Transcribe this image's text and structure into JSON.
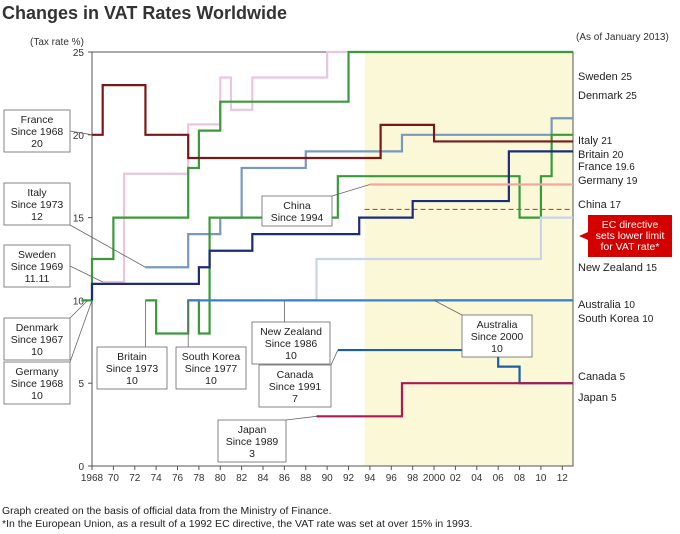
{
  "title": "Changes in VAT Rates Worldwide",
  "as_of": "(As of January 2013)",
  "y_axis_label": "(Tax rate %)",
  "footnotes": [
    "Graph created on the basis of official data from the Ministry of Finance.",
    "*In the European Union, as a result of a 1992 EC directive, the VAT rate was set at over 15% in 1993."
  ],
  "callout": "EC directive sets lower limit for VAT rate*",
  "chart_data": {
    "type": "line",
    "title": "Changes in VAT Rates Worldwide",
    "xlabel": "",
    "ylabel": "(Tax rate %)",
    "xlim": [
      1968,
      2013
    ],
    "ylim": [
      0,
      25
    ],
    "x_ticks": [
      {
        "v": 1968,
        "label": "1968"
      },
      {
        "v": 1970,
        "label": "70"
      },
      {
        "v": 1972,
        "label": "72"
      },
      {
        "v": 1974,
        "label": "74"
      },
      {
        "v": 1976,
        "label": "76"
      },
      {
        "v": 1978,
        "label": "78"
      },
      {
        "v": 1980,
        "label": "80"
      },
      {
        "v": 1982,
        "label": "82"
      },
      {
        "v": 1984,
        "label": "84"
      },
      {
        "v": 1986,
        "label": "86"
      },
      {
        "v": 1988,
        "label": "88"
      },
      {
        "v": 1990,
        "label": "90"
      },
      {
        "v": 1992,
        "label": "92"
      },
      {
        "v": 1994,
        "label": "94"
      },
      {
        "v": 1996,
        "label": "96"
      },
      {
        "v": 1998,
        "label": "98"
      },
      {
        "v": 2000,
        "label": "2000"
      },
      {
        "v": 2002,
        "label": "02"
      },
      {
        "v": 2004,
        "label": "04"
      },
      {
        "v": 2006,
        "label": "06"
      },
      {
        "v": 2008,
        "label": "08"
      },
      {
        "v": 2010,
        "label": "10"
      },
      {
        "v": 2012,
        "label": "12"
      }
    ],
    "y_ticks": [
      0,
      5,
      10,
      15,
      20,
      25
    ],
    "highlight_range": [
      1993.5,
      2013
    ],
    "ec_threshold": 15.5,
    "series": [
      {
        "name": "Sweden",
        "end_label": "Sweden",
        "end_value": "25",
        "color": "#e8c6e0",
        "points": [
          [
            1969,
            11.11
          ],
          [
            1971,
            11.11
          ],
          [
            1971,
            17.65
          ],
          [
            1977,
            17.65
          ],
          [
            1977,
            20.63
          ],
          [
            1980,
            20.63
          ],
          [
            1980,
            23.46
          ],
          [
            1981,
            23.46
          ],
          [
            1981,
            21.51
          ],
          [
            1983,
            21.51
          ],
          [
            1983,
            23.46
          ],
          [
            1990,
            23.46
          ],
          [
            1990,
            25
          ],
          [
            2013,
            25
          ]
        ]
      },
      {
        "name": "Denmark",
        "end_label": "Denmark",
        "end_value": "25",
        "color": "#3a9a3a",
        "points": [
          [
            1967,
            10
          ],
          [
            1968,
            10
          ],
          [
            1968,
            12.5
          ],
          [
            1970,
            12.5
          ],
          [
            1970,
            15
          ],
          [
            1977,
            15
          ],
          [
            1977,
            18
          ],
          [
            1978,
            18
          ],
          [
            1978,
            20.25
          ],
          [
            1980,
            20.25
          ],
          [
            1980,
            22
          ],
          [
            1992,
            22
          ],
          [
            1992,
            25
          ],
          [
            2013,
            25
          ]
        ]
      },
      {
        "name": "Italy",
        "end_label": "Italy",
        "end_value": "21",
        "color": "#7898c0",
        "points": [
          [
            1973,
            12
          ],
          [
            1977,
            12
          ],
          [
            1977,
            14
          ],
          [
            1980,
            14
          ],
          [
            1980,
            15
          ],
          [
            1982,
            15
          ],
          [
            1982,
            18
          ],
          [
            1988,
            18
          ],
          [
            1988,
            19
          ],
          [
            1997,
            19
          ],
          [
            1997,
            20
          ],
          [
            2011,
            20
          ],
          [
            2011,
            21
          ],
          [
            2013,
            21
          ]
        ]
      },
      {
        "name": "Britain",
        "end_label": "Britain",
        "end_value": "20",
        "color": "#3a9a3a",
        "points": [
          [
            1973,
            10
          ],
          [
            1974,
            10
          ],
          [
            1974,
            8
          ],
          [
            1977,
            8
          ],
          [
            1977,
            10
          ],
          [
            1978,
            10
          ],
          [
            1978,
            8
          ],
          [
            1979,
            8
          ],
          [
            1979,
            15
          ],
          [
            1991,
            15
          ],
          [
            1991,
            17.5
          ],
          [
            2008,
            17.5
          ],
          [
            2008,
            15
          ],
          [
            2010,
            15
          ],
          [
            2010,
            17.5
          ],
          [
            2011,
            17.5
          ],
          [
            2011,
            20
          ],
          [
            2013,
            20
          ]
        ]
      },
      {
        "name": "France",
        "end_label": "France",
        "end_value": "19.6",
        "color": "#7a1818",
        "points": [
          [
            1968,
            20
          ],
          [
            1969,
            20
          ],
          [
            1969,
            23
          ],
          [
            1970,
            23
          ],
          [
            1970,
            23
          ],
          [
            1973,
            23
          ],
          [
            1973,
            20
          ],
          [
            1977,
            20
          ],
          [
            1977,
            18.6
          ],
          [
            1982,
            18.6
          ],
          [
            1982,
            18.6
          ],
          [
            1995,
            18.6
          ],
          [
            1995,
            20.6
          ],
          [
            2000,
            20.6
          ],
          [
            2000,
            19.6
          ],
          [
            2013,
            19.6
          ]
        ]
      },
      {
        "name": "Germany",
        "end_label": "Germany",
        "end_value": "19",
        "color": "#1c2b7a",
        "points": [
          [
            1968,
            10
          ],
          [
            1968,
            11
          ],
          [
            1978,
            11
          ],
          [
            1978,
            12
          ],
          [
            1979,
            12
          ],
          [
            1979,
            13
          ],
          [
            1983,
            13
          ],
          [
            1983,
            14
          ],
          [
            1993,
            14
          ],
          [
            1993,
            15
          ],
          [
            1998,
            15
          ],
          [
            1998,
            16
          ],
          [
            2007,
            16
          ],
          [
            2007,
            19
          ],
          [
            2013,
            19
          ]
        ]
      },
      {
        "name": "China",
        "end_label": "China",
        "end_value": "17",
        "color": "#f0a8a0",
        "points": [
          [
            1994,
            17
          ],
          [
            2013,
            17
          ]
        ]
      },
      {
        "name": "New Zealand",
        "end_label": "New Zealand",
        "end_value": "15",
        "color": "#c8d4e8",
        "points": [
          [
            1986,
            10
          ],
          [
            1989,
            10
          ],
          [
            1989,
            12.5
          ],
          [
            2010,
            12.5
          ],
          [
            2010,
            15
          ],
          [
            2013,
            15
          ]
        ]
      },
      {
        "name": "Australia",
        "end_label": "Australia",
        "end_value": "10",
        "color": "#888888",
        "points": [
          [
            2000,
            10
          ],
          [
            2013,
            10
          ]
        ]
      },
      {
        "name": "South Korea",
        "end_label": "South Korea",
        "end_value": "10",
        "color": "#3a80d0",
        "points": [
          [
            1977,
            10
          ],
          [
            2013,
            10
          ]
        ]
      },
      {
        "name": "Canada",
        "end_label": "Canada",
        "end_value": "5",
        "color": "#1a5fa8",
        "points": [
          [
            1991,
            7
          ],
          [
            2006,
            7
          ],
          [
            2006,
            6
          ],
          [
            2008,
            6
          ],
          [
            2008,
            5
          ],
          [
            2013,
            5
          ]
        ]
      },
      {
        "name": "Japan",
        "end_label": "Japan",
        "end_value": "5",
        "color": "#b01850",
        "points": [
          [
            1989,
            3
          ],
          [
            1997,
            3
          ],
          [
            1997,
            5
          ],
          [
            2013,
            5
          ]
        ]
      }
    ],
    "intro_labels": [
      {
        "name": "France",
        "lines": [
          "France",
          "Since 1968",
          "20"
        ]
      },
      {
        "name": "Italy",
        "lines": [
          "Italy",
          "Since 1973",
          "12"
        ]
      },
      {
        "name": "Sweden",
        "lines": [
          "Sweden",
          "Since 1969",
          "11.11"
        ]
      },
      {
        "name": "Denmark",
        "lines": [
          "Denmark",
          "Since 1967",
          "10"
        ]
      },
      {
        "name": "Germany",
        "lines": [
          "Germany",
          "Since 1968",
          "10"
        ]
      },
      {
        "name": "Britain",
        "lines": [
          "Britain",
          "Since 1973",
          "10"
        ]
      },
      {
        "name": "South Korea",
        "lines": [
          "South Korea",
          "Since 1977",
          "10"
        ]
      },
      {
        "name": "China",
        "lines": [
          "China",
          "Since 1994"
        ]
      },
      {
        "name": "New Zealand",
        "lines": [
          "New Zealand",
          "Since 1986",
          "10"
        ]
      },
      {
        "name": "Australia",
        "lines": [
          "Australia",
          "Since 2000",
          "10"
        ]
      },
      {
        "name": "Canada",
        "lines": [
          "Canada",
          "Since 1991",
          "7"
        ]
      },
      {
        "name": "Japan",
        "lines": [
          "Japan",
          "Since 1989",
          "3"
        ]
      }
    ]
  }
}
